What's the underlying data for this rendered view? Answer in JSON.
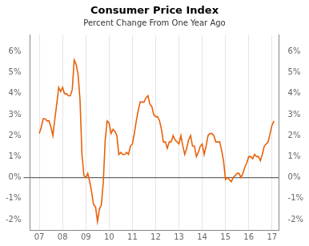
{
  "chart_data": {
    "type": "line",
    "title": "Consumer Price Index",
    "subtitle": "Percent Change From One Year Ago",
    "color": "#E8610A",
    "grid": "x",
    "xlim": [
      2006.6,
      2017.3
    ],
    "xticks": [
      {
        "value": 2007.0,
        "label": "07"
      },
      {
        "value": 2008.0,
        "label": "08"
      },
      {
        "value": 2009.0,
        "label": "09"
      },
      {
        "value": 2010.0,
        "label": "10"
      },
      {
        "value": 2011.0,
        "label": "11"
      },
      {
        "value": 2012.0,
        "label": "12"
      },
      {
        "value": 2013.0,
        "label": "13"
      },
      {
        "value": 2014.0,
        "label": "14"
      },
      {
        "value": 2015.0,
        "label": "15"
      },
      {
        "value": 2016.0,
        "label": "16"
      },
      {
        "value": 2017.0,
        "label": "17"
      }
    ],
    "ylim": [
      -2.5,
      6.8
    ],
    "yticks": [
      {
        "value": -2,
        "label": "-2%"
      },
      {
        "value": -1,
        "label": "-1%"
      },
      {
        "value": 0,
        "label": "0%"
      },
      {
        "value": 1,
        "label": "1%"
      },
      {
        "value": 2,
        "label": "2%"
      },
      {
        "value": 3,
        "label": "3%"
      },
      {
        "value": 4,
        "label": "4%"
      },
      {
        "value": 5,
        "label": "5%"
      },
      {
        "value": 6,
        "label": "6%"
      }
    ],
    "y2lim": [
      -2.5,
      6.8
    ],
    "y2ticks": [
      {
        "value": -2,
        "label": "-2%"
      },
      {
        "value": -1,
        "label": "-1%"
      },
      {
        "value": 0,
        "label": "0%"
      },
      {
        "value": 1,
        "label": "1%"
      },
      {
        "value": 2,
        "label": "2%"
      },
      {
        "value": 3,
        "label": "3%"
      },
      {
        "value": 4,
        "label": "4%"
      },
      {
        "value": 5,
        "label": "5%"
      },
      {
        "value": 6,
        "label": "6%"
      }
    ],
    "x": [
      2007.0,
      2007.083,
      2007.167,
      2007.25,
      2007.333,
      2007.417,
      2007.5,
      2007.583,
      2007.667,
      2007.75,
      2007.833,
      2007.917,
      2008.0,
      2008.083,
      2008.167,
      2008.25,
      2008.333,
      2008.417,
      2008.5,
      2008.583,
      2008.667,
      2008.75,
      2008.833,
      2008.917,
      2009.0,
      2009.083,
      2009.167,
      2009.25,
      2009.333,
      2009.417,
      2009.5,
      2009.583,
      2009.667,
      2009.75,
      2009.833,
      2009.917,
      2010.0,
      2010.083,
      2010.167,
      2010.25,
      2010.333,
      2010.417,
      2010.5,
      2010.583,
      2010.667,
      2010.75,
      2010.833,
      2010.917,
      2011.0,
      2011.083,
      2011.167,
      2011.25,
      2011.333,
      2011.417,
      2011.5,
      2011.583,
      2011.667,
      2011.75,
      2011.833,
      2011.917,
      2012.0,
      2012.083,
      2012.167,
      2012.25,
      2012.333,
      2012.417,
      2012.5,
      2012.583,
      2012.667,
      2012.75,
      2012.833,
      2012.917,
      2013.0,
      2013.083,
      2013.167,
      2013.25,
      2013.333,
      2013.417,
      2013.5,
      2013.583,
      2013.667,
      2013.75,
      2013.833,
      2013.917,
      2014.0,
      2014.083,
      2014.167,
      2014.25,
      2014.333,
      2014.417,
      2014.5,
      2014.583,
      2014.667,
      2014.75,
      2014.833,
      2014.917,
      2015.0,
      2015.083,
      2015.167,
      2015.25,
      2015.333,
      2015.417,
      2015.5,
      2015.583,
      2015.667,
      2015.75,
      2015.833,
      2015.917,
      2016.0,
      2016.083,
      2016.167,
      2016.25,
      2016.333,
      2016.417,
      2016.5,
      2016.583,
      2016.667,
      2016.75,
      2016.833,
      2016.917,
      2017.0,
      2017.083
    ],
    "values": [
      2.1,
      2.4,
      2.8,
      2.8,
      2.7,
      2.7,
      2.4,
      2.0,
      2.8,
      3.5,
      4.3,
      4.1,
      4.3,
      4.0,
      4.0,
      3.9,
      3.9,
      4.2,
      5.6,
      5.4,
      4.9,
      3.7,
      1.1,
      0.1,
      0.0,
      0.2,
      -0.2,
      -0.7,
      -1.3,
      -1.4,
      -2.1,
      -1.5,
      -1.3,
      -0.2,
      1.8,
      2.7,
      2.6,
      2.1,
      2.3,
      2.2,
      2.0,
      1.1,
      1.2,
      1.1,
      1.1,
      1.2,
      1.1,
      1.5,
      1.6,
      2.1,
      2.7,
      3.2,
      3.6,
      3.6,
      3.6,
      3.8,
      3.9,
      3.5,
      3.4,
      3.0,
      2.9,
      2.9,
      2.7,
      2.3,
      1.7,
      1.7,
      1.4,
      1.7,
      1.7,
      2.0,
      1.8,
      1.7,
      1.6,
      2.0,
      1.5,
      1.1,
      1.4,
      1.8,
      2.0,
      1.5,
      1.5,
      1.0,
      1.2,
      1.5,
      1.6,
      1.1,
      1.5,
      2.0,
      2.1,
      2.1,
      2.0,
      1.7,
      1.7,
      1.7,
      1.3,
      0.8,
      -0.1,
      0.0,
      -0.1,
      -0.2,
      0.0,
      0.1,
      0.2,
      0.2,
      0.0,
      0.2,
      0.5,
      0.7,
      1.0,
      1.0,
      0.9,
      1.1,
      1.0,
      1.0,
      0.8,
      1.1,
      1.5,
      1.6,
      1.7,
      2.1,
      2.5,
      2.7
    ]
  }
}
